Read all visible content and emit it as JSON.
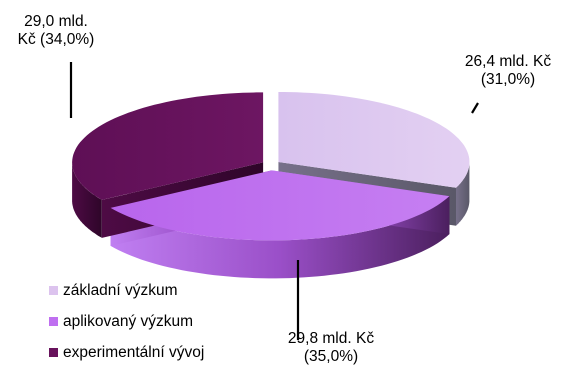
{
  "chart_data": {
    "type": "pie",
    "title": "",
    "unit": "mld. Kč",
    "slices": [
      {
        "label": "základní výzkum",
        "value": 26.4,
        "percent": 31.0,
        "color": "#dcc3ee",
        "data_label": [
          "26,4 mld. Kč",
          "(31,0%)"
        ]
      },
      {
        "label": "aplikovaný výzkum",
        "value": 29.8,
        "percent": 35.0,
        "color": "#bf6ff0",
        "data_label": [
          "29,8 mld. Kč",
          "(35,0%)"
        ]
      },
      {
        "label": "experimentální vývoj",
        "value": 29.0,
        "percent": 34.0,
        "color": "#68125c",
        "data_label": [
          "29,0  mld.",
          "Kč (34,0%)"
        ]
      }
    ],
    "legend_position": "bottom-left"
  }
}
